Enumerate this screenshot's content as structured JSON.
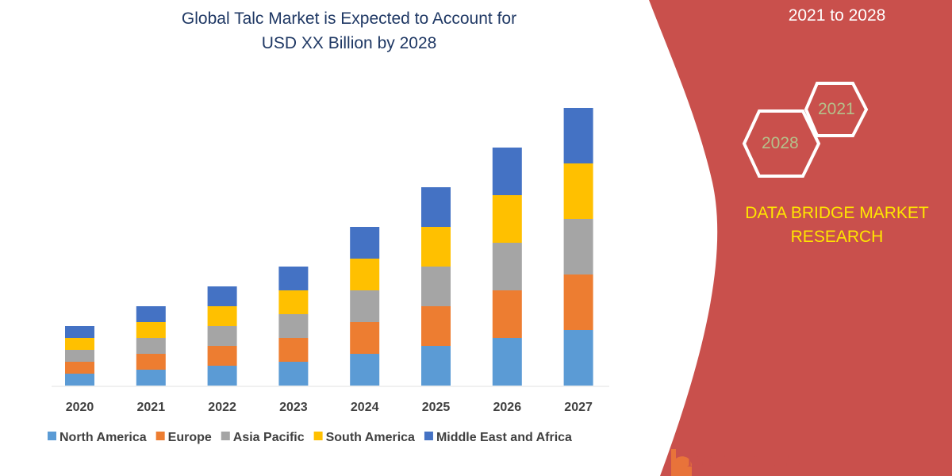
{
  "chart_data": {
    "type": "bar",
    "stacked": true,
    "title": "Global Talc Market is Expected to Account for USD XX Billion by 2028",
    "title_lines": [
      "Global Talc Market is Expected to Account for",
      "USD XX Billion by 2028"
    ],
    "categories": [
      "2020",
      "2021",
      "2022",
      "2023",
      "2024",
      "2025",
      "2026",
      "2027"
    ],
    "series": [
      {
        "name": "North America",
        "color": "#5B9BD5",
        "values": [
          1.5,
          2,
          2.5,
          3,
          4,
          5,
          6,
          7
        ]
      },
      {
        "name": "Europe",
        "color": "#ED7D31",
        "values": [
          1.5,
          2,
          2.5,
          3,
          4,
          5,
          6,
          7
        ]
      },
      {
        "name": "Asia Pacific",
        "color": "#A5A5A5",
        "values": [
          1.5,
          2,
          2.5,
          3,
          4,
          5,
          6,
          7
        ]
      },
      {
        "name": "South America",
        "color": "#FFC000",
        "values": [
          1.5,
          2,
          2.5,
          3,
          4,
          5,
          6,
          7
        ]
      },
      {
        "name": "Middle East and Africa",
        "color": "#4472C4",
        "values": [
          1.5,
          2,
          2.5,
          3,
          4,
          5,
          6,
          7
        ]
      }
    ],
    "xlabel": "",
    "ylabel": "",
    "ylim": [
      0,
      35
    ],
    "grid": false,
    "legend": "bottom"
  },
  "side_panel": {
    "subtitle": "2021 to 2028",
    "hex_years": [
      "2021",
      "2028"
    ],
    "brand": "DATA BRIDGE MARKET RESEARCH",
    "logo": "DATA BRIDGE",
    "color": "#C9504C"
  }
}
